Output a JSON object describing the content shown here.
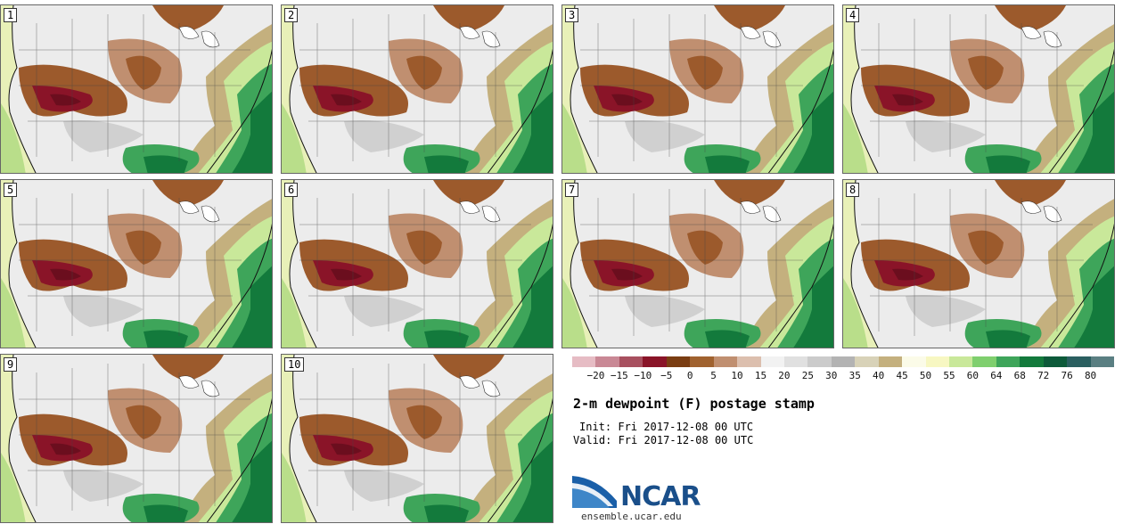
{
  "panels": [
    {
      "label": "1"
    },
    {
      "label": "2"
    },
    {
      "label": "3"
    },
    {
      "label": "4"
    },
    {
      "label": "5"
    },
    {
      "label": "6"
    },
    {
      "label": "7"
    },
    {
      "label": "8"
    },
    {
      "label": "9"
    },
    {
      "label": "10"
    }
  ],
  "colorbar": {
    "labels": [
      "−20",
      "−15",
      "−10",
      "−5",
      "0",
      "5",
      "10",
      "15",
      "20",
      "25",
      "30",
      "35",
      "40",
      "45",
      "50",
      "55",
      "60",
      "64",
      "68",
      "72",
      "76",
      "80"
    ],
    "colors": [
      "#e6bcc4",
      "#c98895",
      "#a8505f",
      "#8a1428",
      "#7a3d12",
      "#a0622f",
      "#c08f70",
      "#dcbfae",
      "#f2f2f2",
      "#e0e0e0",
      "#cbcbcb",
      "#b3b3b3",
      "#d8d2b8",
      "#c4b07e",
      "#fbfbe8",
      "#f7f7c2",
      "#c9e89a",
      "#7fcf6e",
      "#3ea55a",
      "#137a3c",
      "#0d5a3a",
      "#2a5f60",
      "#5a7f82"
    ]
  },
  "title": "2-m dewpoint (F) postage stamp",
  "init": "Init: Fri 2017-12-08 00 UTC",
  "valid": "Valid: Fri 2017-12-08 00 UTC",
  "logo": {
    "text": "NCAR",
    "site": "ensemble.ucar.edu"
  }
}
